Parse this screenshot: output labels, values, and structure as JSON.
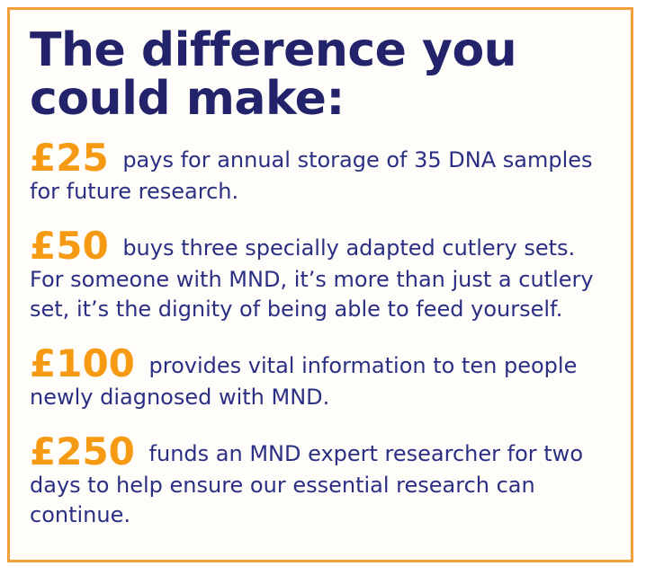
{
  "title_lines": [
    "The difference you",
    "could make:"
  ],
  "items": [
    {
      "amount": "£25",
      "text": "pays for annual storage of 35 DNA samples for future research."
    },
    {
      "amount": "£50",
      "text": "buys three specially adapted cutlery sets. For someone with MND, it’s more than just a cutlery set, it’s the dignity of being able to feed yourself."
    },
    {
      "amount": "£100",
      "text": "provides vital information to ten people newly diagnosed with MND."
    },
    {
      "amount": "£250",
      "text": "funds an MND expert researcher for two days to help ensure our essential research can continue."
    }
  ],
  "colors": {
    "title": "#22236b",
    "amount": "#f59a12",
    "text": "#2b2f83",
    "border": "#f2a13a"
  }
}
